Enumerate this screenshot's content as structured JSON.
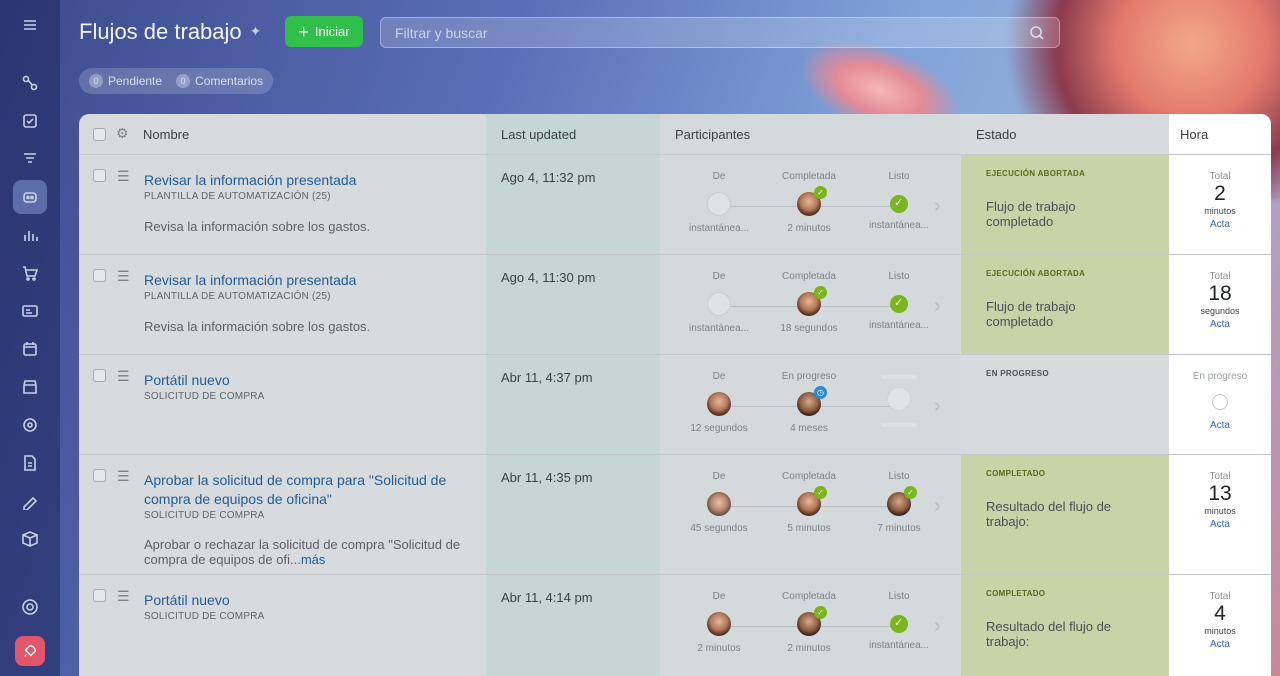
{
  "header": {
    "title": "Flujos de trabajo",
    "start_label": "Iniciar",
    "search_placeholder": "Filtrar y buscar"
  },
  "counters": [
    {
      "count": "0",
      "label": "Pendiente"
    },
    {
      "count": "0",
      "label": "Comentarios"
    }
  ],
  "columns": {
    "name": "Nombre",
    "updated": "Last updated",
    "participants": "Participantes",
    "state": "Estado",
    "time": "Hora"
  },
  "rows": [
    {
      "name": "Revisar la información presentada",
      "template": "PLANTILLA DE AUTOMATIZACIÓN (25)",
      "description": "Revisa la información sobre los gastos.",
      "updated": "Ago 4, 11:32 pm",
      "steps": [
        {
          "label": "De",
          "time": "instantánea..."
        },
        {
          "label": "Completada",
          "time": "2 minutos"
        },
        {
          "label": "Listo",
          "time": "instantánea..."
        }
      ],
      "state_label": "EJECUCIÓN ABORTADA",
      "state_text": "Flujo de trabajo completado",
      "time_total": "Total",
      "time_value": "2",
      "time_unit": "minutos",
      "time_link": "Acta"
    },
    {
      "name": "Revisar la información presentada",
      "template": "PLANTILLA DE AUTOMATIZACIÓN (25)",
      "description": "Revisa la información sobre los gastos.",
      "updated": "Ago 4, 11:30 pm",
      "steps": [
        {
          "label": "De",
          "time": "instantánea..."
        },
        {
          "label": "Completada",
          "time": "18 segundos"
        },
        {
          "label": "Listo",
          "time": "instantánea..."
        }
      ],
      "state_label": "EJECUCIÓN ABORTADA",
      "state_text": "Flujo de trabajo completado",
      "time_total": "Total",
      "time_value": "18",
      "time_unit": "segundos",
      "time_link": "Acta"
    },
    {
      "name": "Portátil nuevo",
      "template": "SOLICITUD DE COMPRA",
      "updated": "Abr 11, 4:37 pm",
      "steps": [
        {
          "label": "De",
          "time": "12 segundos"
        },
        {
          "label": "En progreso",
          "time": "4 meses"
        }
      ],
      "state_label": "EN PROGRESO",
      "time_status": "En progreso",
      "time_link": "Acta"
    },
    {
      "name": "Aprobar la solicitud de compra para \"Solicitud de compra de equipos de oficina\"",
      "template": "SOLICITUD DE COMPRA",
      "description": "Aprobar o rechazar la solicitud de compra \"Solicitud de compra de equipos de ofi...",
      "more": "más",
      "updated": "Abr 11, 4:35 pm",
      "steps": [
        {
          "label": "De",
          "time": "45 segundos"
        },
        {
          "label": "Completada",
          "time": "5 minutos"
        },
        {
          "label": "Listo",
          "time": "7 minutos"
        }
      ],
      "state_label": "COMPLETADO",
      "state_text": "Resultado del flujo de trabajo:",
      "time_total": "Total",
      "time_value": "13",
      "time_unit": "minutos",
      "time_link": "Acta"
    },
    {
      "name": "Portátil nuevo",
      "template": "SOLICITUD DE COMPRA",
      "updated": "Abr 11, 4:14 pm",
      "steps": [
        {
          "label": "De",
          "time": "2 minutos"
        },
        {
          "label": "Completada",
          "time": "2 minutos"
        },
        {
          "label": "Listo",
          "time": "instantánea..."
        }
      ],
      "state_label": "COMPLETADO",
      "state_text": "Resultado del flujo de trabajo:",
      "time_total": "Total",
      "time_value": "4",
      "time_unit": "minutos",
      "time_link": "Acta"
    }
  ]
}
